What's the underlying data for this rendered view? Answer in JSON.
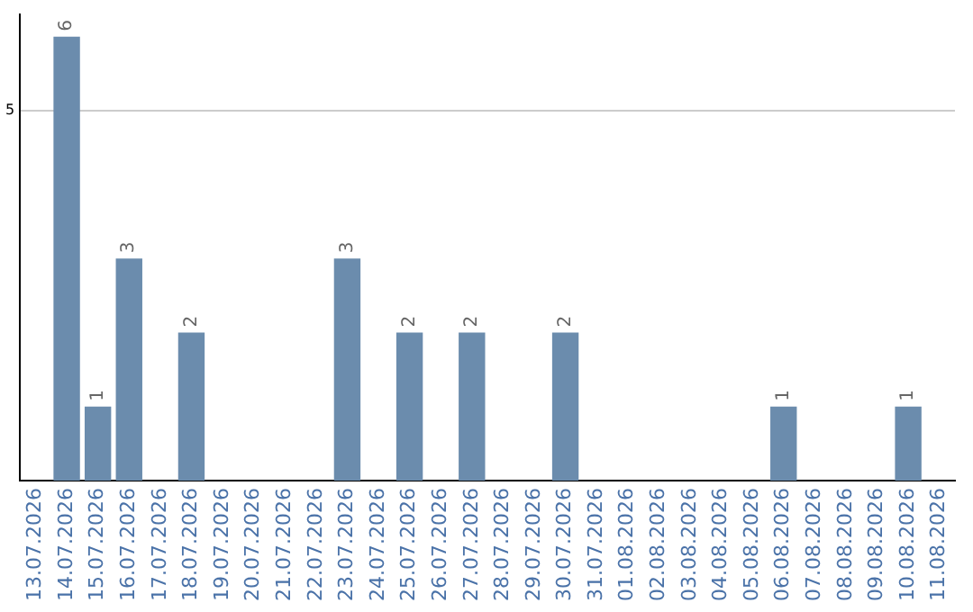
{
  "chart_data": {
    "type": "bar",
    "categories": [
      "13.07.2026",
      "14.07.2026",
      "15.07.2026",
      "16.07.2026",
      "17.07.2026",
      "18.07.2026",
      "19.07.2026",
      "20.07.2026",
      "21.07.2026",
      "22.07.2026",
      "23.07.2026",
      "24.07.2026",
      "25.07.2026",
      "26.07.2026",
      "27.07.2026",
      "28.07.2026",
      "29.07.2026",
      "30.07.2026",
      "31.07.2026",
      "01.08.2026",
      "02.08.2026",
      "03.08.2026",
      "04.08.2026",
      "05.08.2026",
      "06.08.2026",
      "07.08.2026",
      "08.08.2026",
      "09.08.2026",
      "10.08.2026",
      "11.08.2026"
    ],
    "values": [
      0,
      6,
      1,
      3,
      0,
      2,
      0,
      0,
      0,
      0,
      3,
      0,
      2,
      0,
      2,
      0,
      0,
      2,
      0,
      0,
      0,
      0,
      0,
      0,
      1,
      0,
      0,
      0,
      1,
      0
    ],
    "value_labels": [
      null,
      "6",
      "1",
      "3",
      null,
      "2",
      null,
      null,
      null,
      null,
      "3",
      null,
      "2",
      null,
      "2",
      null,
      null,
      "2",
      null,
      null,
      null,
      null,
      null,
      null,
      "1",
      null,
      null,
      null,
      "1",
      null
    ],
    "color": "#6b8cad",
    "ylim": [
      0,
      6.3
    ],
    "yticks": [
      5
    ],
    "grid": "y",
    "legend": false
  }
}
